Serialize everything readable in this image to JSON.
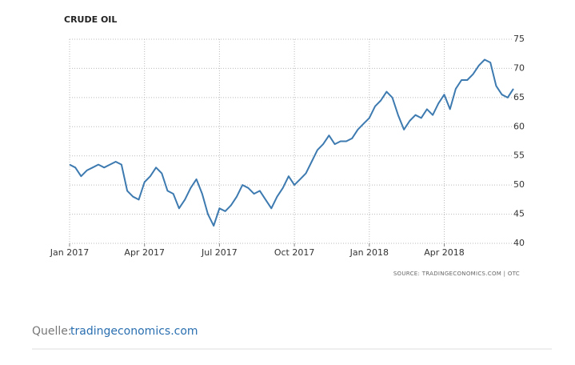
{
  "chart_data": {
    "type": "line",
    "title": "CRUDE OIL",
    "source": "SOURCE: TRADINGECONOMICS.COM | OTC",
    "categories": [
      "Jan 2017",
      null,
      null,
      null,
      null,
      null,
      null,
      null,
      null,
      null,
      null,
      null,
      null,
      "Apr 2017",
      null,
      null,
      null,
      null,
      null,
      null,
      null,
      null,
      null,
      null,
      null,
      null,
      "Jul 2017",
      null,
      null,
      null,
      null,
      null,
      null,
      null,
      null,
      null,
      null,
      null,
      null,
      "Oct 2017",
      null,
      null,
      null,
      null,
      null,
      null,
      null,
      null,
      null,
      null,
      null,
      null,
      "Jan 2018",
      null,
      null,
      null,
      null,
      null,
      null,
      null,
      null,
      null,
      null,
      null,
      null,
      "Apr 2018",
      null,
      null,
      null,
      null,
      null,
      null,
      null,
      null,
      null,
      null,
      null,
      null
    ],
    "values": [
      53.5,
      53,
      51.5,
      52.5,
      53,
      53.5,
      53,
      53.5,
      54,
      53.5,
      49,
      48,
      47.5,
      50.5,
      51.5,
      53,
      52,
      49,
      48.5,
      46,
      47.5,
      49.5,
      51,
      48.5,
      45,
      43,
      46,
      45.5,
      46.5,
      48,
      50,
      49.5,
      48.5,
      49,
      47.5,
      46,
      48,
      49.5,
      51.5,
      50,
      51,
      52,
      54,
      56,
      57,
      58.5,
      57,
      57.5,
      57.5,
      58,
      59.5,
      60.5,
      61.5,
      63.5,
      64.5,
      66,
      65,
      62,
      59.5,
      61,
      62,
      61.5,
      63,
      62,
      64,
      65.5,
      63,
      66.5,
      68,
      68,
      69,
      70.5,
      71.5,
      71,
      67,
      65.5,
      65,
      66.5
    ],
    "color": "#3d7ab0",
    "ylim": [
      40,
      75
    ],
    "yticks": [
      40,
      45,
      50,
      55,
      60,
      65,
      70,
      75
    ],
    "grid": true
  },
  "caption": {
    "prefix": "Quelle:",
    "link": "tradingeconomics.com"
  }
}
